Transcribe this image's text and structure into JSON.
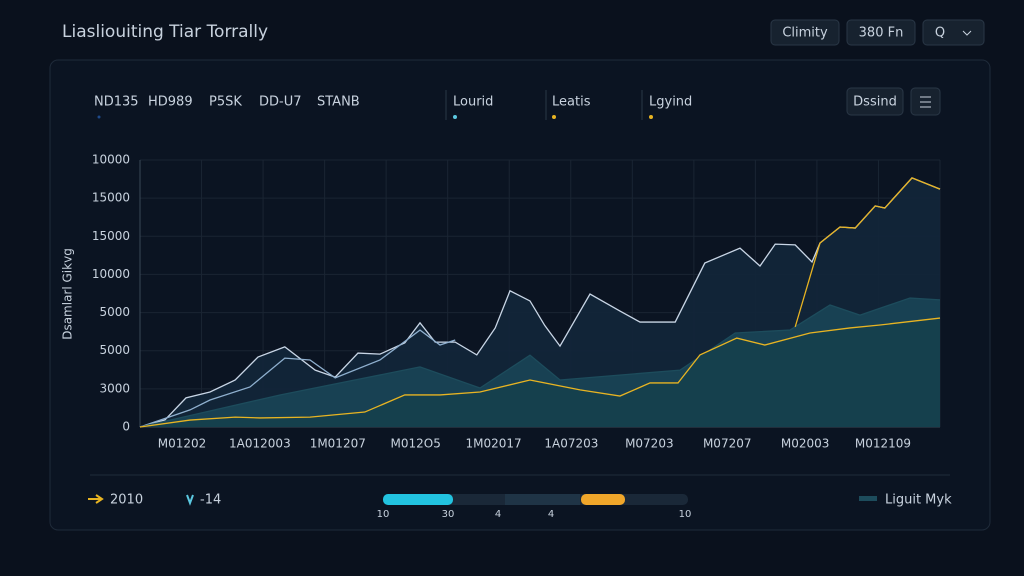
{
  "header": {
    "title": "Liasliouiting Tiar Torrally",
    "buttons": [
      "Climity",
      "380 Fn",
      "Q"
    ]
  },
  "tabs": [
    "ND135",
    "HD989",
    "P5SK",
    "DD-U7",
    "STANB"
  ],
  "action_button": "Dssind",
  "chart_data": {
    "type": "line",
    "y_axis_title": "Dsamlarl Gikvg",
    "y_axis_labels": [
      "0",
      "3000",
      "5000",
      "5000",
      "10000",
      "15000",
      "15000",
      "10000"
    ],
    "x_axis_labels": [
      "M01202",
      "1A012003",
      "1M01207",
      "M012O5",
      "1M02017",
      "1A07203",
      "M07203",
      "M07207",
      "M02003",
      "M012109"
    ],
    "xlim": [
      0,
      100
    ],
    "ylim": [
      0,
      100
    ],
    "grid": true,
    "series": [
      {
        "name": "Lourid",
        "color": "#c9d6e6",
        "fill": "#12263a",
        "x": [
          0,
          3.1,
          5.75,
          8.75,
          11.9,
          14.75,
          18.1,
          21.9,
          24.4,
          27.25,
          30,
          33.1,
          35,
          36.9,
          39.4,
          42.1,
          44.4,
          46.25,
          48.75,
          50.6,
          52.5,
          56.25,
          60,
          62.5,
          66.9,
          70.6,
          75,
          77.5,
          79.4,
          81.9,
          84,
          85,
          87.5,
          89.4,
          91.9,
          93.1,
          96.5,
          100
        ],
        "values": [
          0,
          2.6,
          10.9,
          13.1,
          17.6,
          26.2,
          30,
          21.3,
          18.7,
          27.7,
          27.3,
          31.5,
          39,
          31.8,
          31.8,
          27,
          37.1,
          51,
          47.2,
          38,
          30.3,
          49.8,
          43.4,
          39.3,
          39.3,
          61.4,
          67,
          60.3,
          68.5,
          68.2,
          61.8,
          68.9,
          74.9,
          74.5,
          82.8,
          82,
          93.3,
          89.1
        ]
      },
      {
        "color": "#8fb0cf",
        "x": [
          0,
          6.25,
          8.75,
          13.75,
          18.1,
          21.25,
          24.4,
          30,
          35,
          37.5,
          39.4
        ],
        "values": [
          0,
          6.4,
          10.1,
          15,
          25.8,
          25.1,
          18.4,
          25.1,
          36.3,
          30.7,
          32.6
        ]
      },
      {
        "color": "#1d4c5c",
        "fill": "#1a4556",
        "x": [
          0,
          17.5,
          35,
          42.5,
          48.75,
          52.5,
          67.5,
          74.4,
          81.25,
          86.25,
          90,
          96.25,
          100
        ],
        "values": [
          0,
          12,
          22.5,
          14.6,
          26.9,
          17.6,
          21.3,
          35.2,
          36.3,
          45.7,
          41.9,
          48.3,
          47.6
        ]
      },
      {
        "name": "Leatis",
        "color": "#e8b422",
        "fill": "#15404c",
        "x": [
          0,
          6.25,
          11.9,
          15,
          21.25,
          28.1,
          33.1,
          37.5,
          42.5,
          48.75,
          55,
          60,
          63.75,
          67.25,
          70,
          74.6,
          78.1,
          83.75,
          88.75,
          92.5,
          100
        ],
        "values": [
          0,
          2.6,
          3.7,
          3.4,
          3.7,
          5.6,
          12,
          12,
          13.1,
          17.6,
          13.9,
          11.6,
          16.5,
          16.5,
          27,
          33.3,
          30.7,
          35.2,
          37.1,
          38.2,
          40.8
        ]
      },
      {
        "name": "Lgyind",
        "color": "#e8b422",
        "x": [
          81.9,
          85,
          87.5,
          89.4,
          91.9,
          93.1,
          96.5,
          100
        ],
        "values": [
          37.5,
          68.9,
          74.9,
          74.5,
          82.8,
          82,
          93.3,
          89.1
        ]
      }
    ]
  },
  "footer": {
    "left": [
      "2010",
      "-14"
    ],
    "slider_labels": [
      "10",
      "30",
      "4",
      "4",
      "10"
    ],
    "right": "Liguit Myk"
  }
}
